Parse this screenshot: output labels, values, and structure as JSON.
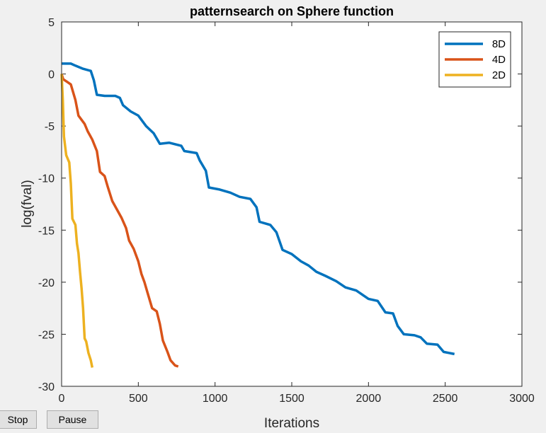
{
  "chart_data": {
    "type": "line",
    "title": "patternsearch on Sphere function",
    "xlabel": "Iterations",
    "ylabel": "log(fval)",
    "xlim": [
      0,
      3000
    ],
    "ylim": [
      -30,
      5
    ],
    "xticks": [
      0,
      500,
      1000,
      1500,
      2000,
      2500,
      3000
    ],
    "yticks": [
      5,
      0,
      -5,
      -10,
      -15,
      -20,
      -25,
      -30
    ],
    "grid": false,
    "legend_position": "top-right",
    "series": [
      {
        "name": "8D",
        "color": "#0072bd",
        "points": [
          [
            0,
            1.0
          ],
          [
            60,
            1.0
          ],
          [
            90,
            0.8
          ],
          [
            140,
            0.5
          ],
          [
            190,
            0.3
          ],
          [
            210,
            -0.6
          ],
          [
            230,
            -2.0
          ],
          [
            280,
            -2.1
          ],
          [
            350,
            -2.1
          ],
          [
            380,
            -2.3
          ],
          [
            400,
            -3.0
          ],
          [
            450,
            -3.6
          ],
          [
            500,
            -4.0
          ],
          [
            550,
            -5.0
          ],
          [
            600,
            -5.7
          ],
          [
            640,
            -6.7
          ],
          [
            700,
            -6.6
          ],
          [
            780,
            -6.9
          ],
          [
            800,
            -7.4
          ],
          [
            880,
            -7.6
          ],
          [
            900,
            -8.3
          ],
          [
            940,
            -9.3
          ],
          [
            960,
            -10.9
          ],
          [
            1030,
            -11.1
          ],
          [
            1100,
            -11.4
          ],
          [
            1160,
            -11.8
          ],
          [
            1230,
            -12.0
          ],
          [
            1270,
            -12.8
          ],
          [
            1290,
            -14.2
          ],
          [
            1360,
            -14.5
          ],
          [
            1400,
            -15.2
          ],
          [
            1440,
            -16.9
          ],
          [
            1500,
            -17.3
          ],
          [
            1560,
            -18.0
          ],
          [
            1610,
            -18.4
          ],
          [
            1660,
            -19.0
          ],
          [
            1720,
            -19.4
          ],
          [
            1790,
            -19.9
          ],
          [
            1850,
            -20.5
          ],
          [
            1920,
            -20.8
          ],
          [
            2000,
            -21.6
          ],
          [
            2060,
            -21.8
          ],
          [
            2110,
            -22.9
          ],
          [
            2160,
            -23.0
          ],
          [
            2190,
            -24.2
          ],
          [
            2230,
            -25.0
          ],
          [
            2300,
            -25.1
          ],
          [
            2340,
            -25.3
          ],
          [
            2380,
            -25.9
          ],
          [
            2450,
            -26.0
          ],
          [
            2490,
            -26.7
          ],
          [
            2560,
            -26.9
          ]
        ]
      },
      {
        "name": "4D",
        "color": "#d95319",
        "points": [
          [
            0,
            0
          ],
          [
            10,
            -0.5
          ],
          [
            40,
            -0.8
          ],
          [
            60,
            -1.0
          ],
          [
            90,
            -2.5
          ],
          [
            110,
            -4.0
          ],
          [
            150,
            -4.8
          ],
          [
            170,
            -5.5
          ],
          [
            200,
            -6.3
          ],
          [
            230,
            -7.4
          ],
          [
            250,
            -9.4
          ],
          [
            280,
            -9.8
          ],
          [
            300,
            -10.8
          ],
          [
            330,
            -12.2
          ],
          [
            360,
            -13.0
          ],
          [
            390,
            -13.8
          ],
          [
            420,
            -14.8
          ],
          [
            440,
            -16.0
          ],
          [
            470,
            -16.8
          ],
          [
            500,
            -18.0
          ],
          [
            520,
            -19.2
          ],
          [
            540,
            -20.0
          ],
          [
            560,
            -21.0
          ],
          [
            590,
            -22.5
          ],
          [
            620,
            -22.8
          ],
          [
            640,
            -24.0
          ],
          [
            660,
            -25.6
          ],
          [
            690,
            -26.7
          ],
          [
            710,
            -27.5
          ],
          [
            740,
            -28.0
          ],
          [
            760,
            -28.1
          ]
        ]
      },
      {
        "name": "2D",
        "color": "#edb120",
        "points": [
          [
            0,
            0
          ],
          [
            8,
            -2.5
          ],
          [
            15,
            -6.0
          ],
          [
            30,
            -7.8
          ],
          [
            50,
            -8.5
          ],
          [
            60,
            -10.5
          ],
          [
            70,
            -13.9
          ],
          [
            90,
            -14.5
          ],
          [
            100,
            -16.3
          ],
          [
            110,
            -17.2
          ],
          [
            120,
            -19.0
          ],
          [
            130,
            -20.6
          ],
          [
            140,
            -22.5
          ],
          [
            150,
            -25.4
          ],
          [
            160,
            -25.7
          ],
          [
            175,
            -26.8
          ],
          [
            190,
            -27.5
          ],
          [
            200,
            -28.2
          ]
        ]
      }
    ]
  },
  "controls": {
    "stop_label": "Stop",
    "pause_label": "Pause"
  }
}
